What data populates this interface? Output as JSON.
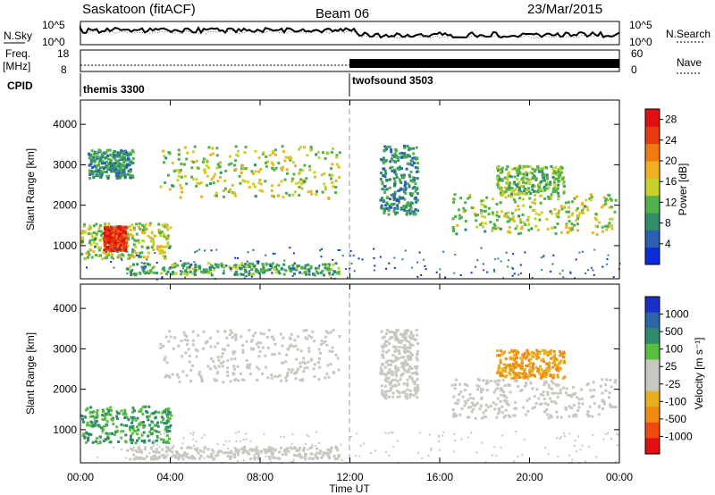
{
  "header": {
    "site": "Saskatoon (fitACF)",
    "beam": "Beam 06",
    "date": "23/Mar/2015"
  },
  "strip_nsky": {
    "left_label": "N.Sky",
    "right_label": "N.Search",
    "left_ticks": [
      "10^5",
      "10^0"
    ],
    "right_ticks": [
      "10^5",
      "10^0"
    ]
  },
  "strip_freq": {
    "left_label_1": "Freq.",
    "left_label_2": "[MHz]",
    "right_label": "Nave",
    "left_ticks": [
      "18",
      "8"
    ],
    "right_ticks": [
      "60",
      "0"
    ]
  },
  "cpid": {
    "label": "CPID",
    "segments": [
      {
        "name": "themis 3300",
        "start_hour": 0
      },
      {
        "name": "twofsound 3503",
        "start_hour": 12
      }
    ]
  },
  "colors": {
    "power_scale": [
      "#0a2bd8",
      "#2f5fb0",
      "#2f8f6a",
      "#4fb24a",
      "#c8d02a",
      "#f0b020",
      "#f07a10",
      "#e63a10",
      "#e01010"
    ],
    "velocity_scale": [
      "#1c2ec8",
      "#2d66a8",
      "#2f8a6e",
      "#58be3c",
      "#c8c8c0",
      "#c8c8c0",
      "#e8b020",
      "#f08a10",
      "#ee4a10",
      "#e01010"
    ]
  },
  "chart_data": [
    {
      "type": "heatmap",
      "title": "Power",
      "xlabel": "",
      "ylabel": "Slant Range [km]",
      "xlim": [
        0,
        24
      ],
      "ylim": [
        180,
        4600
      ],
      "x_ticks": [
        "00:00",
        "04:00",
        "08:00",
        "12:00",
        "16:00",
        "20:00",
        "00:00"
      ],
      "y_ticks": [
        1000,
        2000,
        3000,
        4000
      ],
      "colorbar": {
        "label": "Power [dB]",
        "ticks": [
          4,
          8,
          12,
          16,
          20,
          24,
          28
        ],
        "range": [
          0,
          30
        ]
      },
      "regions": [
        {
          "t0": 0.0,
          "t1": 4.0,
          "r0": 700,
          "r1": 1600,
          "value": 14
        },
        {
          "t0": 1.0,
          "t1": 2.0,
          "r0": 900,
          "r1": 1500,
          "value": 28
        },
        {
          "t0": 2.0,
          "t1": 11.5,
          "r0": 300,
          "r1": 600,
          "value": 10
        },
        {
          "t0": 3.5,
          "t1": 11.5,
          "r0": 2200,
          "r1": 3500,
          "value": 14
        },
        {
          "t0": 0.3,
          "t1": 2.3,
          "r0": 2700,
          "r1": 3400,
          "value": 8
        },
        {
          "t0": 13.3,
          "t1": 15.0,
          "r0": 1800,
          "r1": 3500,
          "value": 8
        },
        {
          "t0": 16.5,
          "t1": 23.8,
          "r0": 1300,
          "r1": 2300,
          "value": 14
        },
        {
          "t0": 18.5,
          "t1": 21.5,
          "r0": 2300,
          "r1": 3000,
          "value": 12
        }
      ]
    },
    {
      "type": "heatmap",
      "title": "Velocity",
      "xlabel": "Time UT",
      "ylabel": "Slant Range [km]",
      "xlim": [
        0,
        24
      ],
      "ylim": [
        180,
        4600
      ],
      "x_ticks": [
        "00:00",
        "04:00",
        "08:00",
        "12:00",
        "16:00",
        "20:00",
        "00:00"
      ],
      "y_ticks": [
        1000,
        2000,
        3000,
        4000
      ],
      "colorbar": {
        "label": "Velocity [m s⁻¹]",
        "ticks": [
          "1000",
          "500",
          "100",
          "25",
          "-25",
          "-100",
          "-500",
          "-1000"
        ]
      },
      "regions": [
        {
          "t0": 0.0,
          "t1": 4.0,
          "r0": 700,
          "r1": 1600,
          "value": "green"
        },
        {
          "t0": 2.0,
          "t1": 11.5,
          "r0": 300,
          "r1": 600,
          "value": "gray"
        },
        {
          "t0": 3.5,
          "t1": 11.5,
          "r0": 2200,
          "r1": 3500,
          "value": "gray"
        },
        {
          "t0": 13.3,
          "t1": 15.0,
          "r0": 1800,
          "r1": 3500,
          "value": "gray"
        },
        {
          "t0": 16.5,
          "t1": 23.8,
          "r0": 1300,
          "r1": 2300,
          "value": "gray"
        },
        {
          "t0": 18.5,
          "t1": 21.5,
          "r0": 2300,
          "r1": 3000,
          "value": "orange"
        }
      ]
    }
  ]
}
